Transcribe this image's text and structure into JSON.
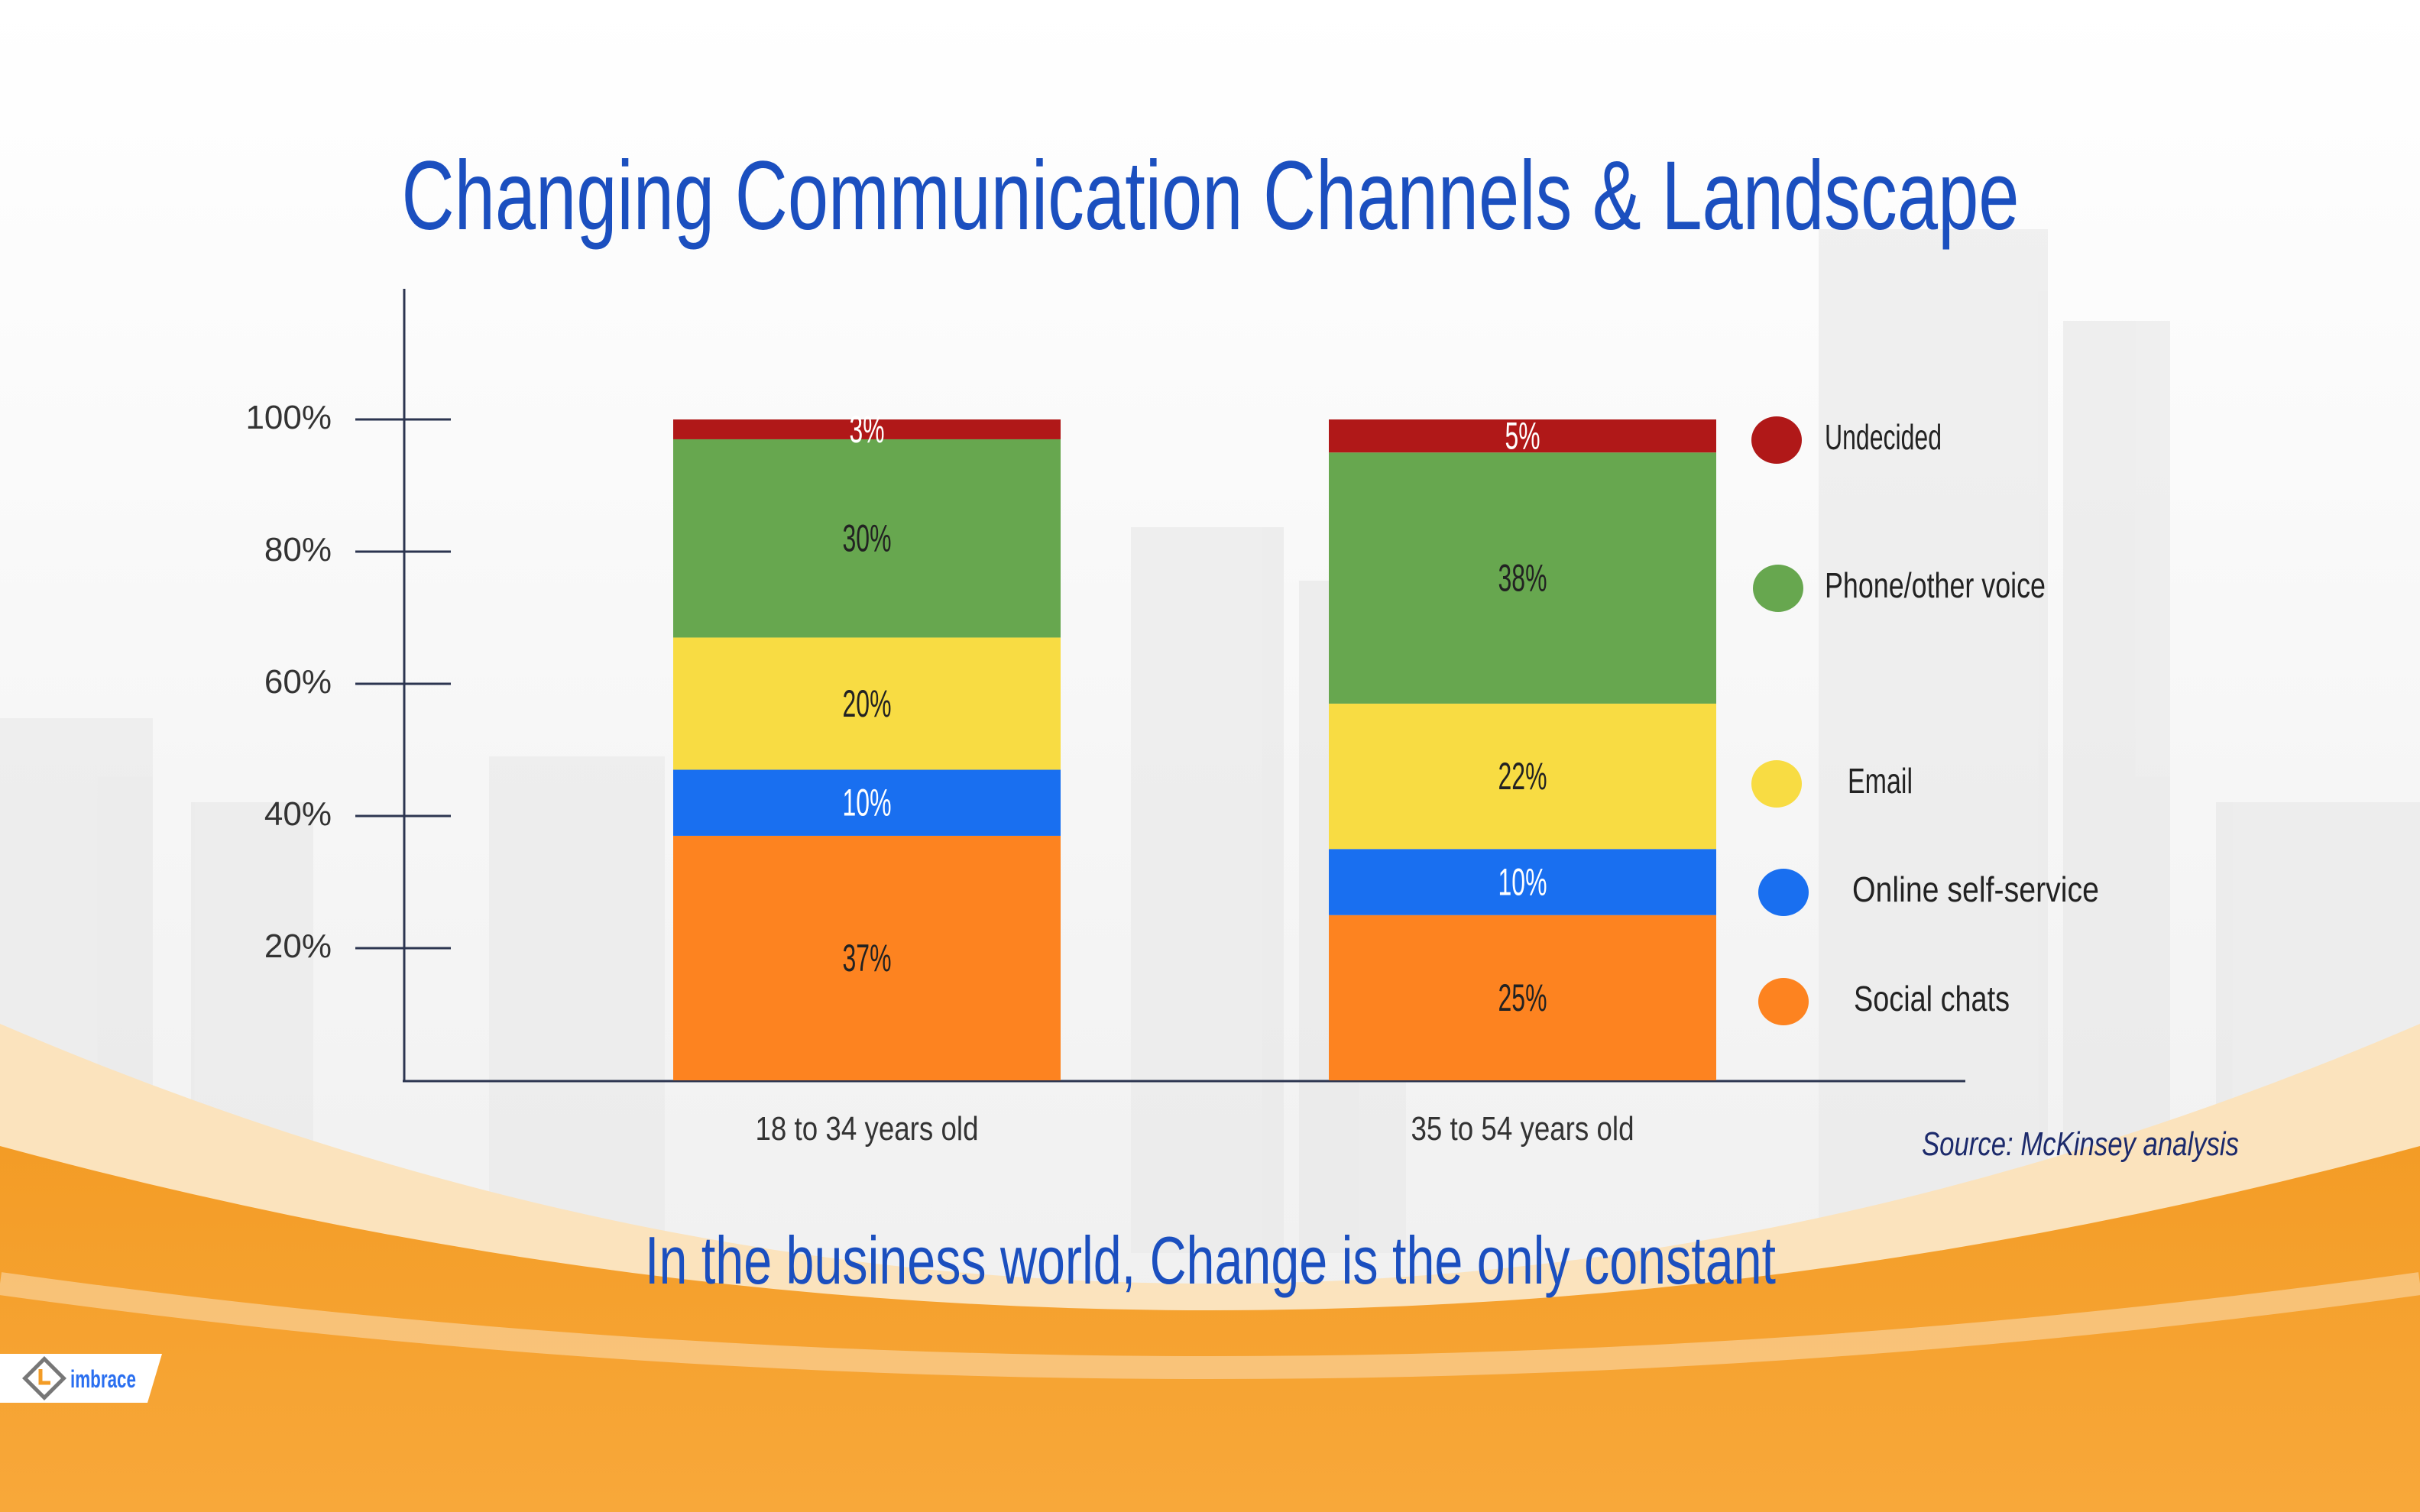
{
  "chart_data": {
    "type": "bar",
    "stacked": true,
    "title": "Changing Communication Channels & Landscape",
    "subtitle": "In the business world, Change is the only constant",
    "source": "Source: McKinsey analysis",
    "categories": [
      "18 to 34 years old",
      "35 to 54 years old"
    ],
    "yticks": [
      "20%",
      "40%",
      "60%",
      "80%",
      "100%"
    ],
    "ytick_values": [
      20,
      40,
      60,
      80,
      100
    ],
    "ylim": [
      0,
      100
    ],
    "legend_position": "right",
    "series": [
      {
        "name": "Social chats",
        "color": "#fd8320",
        "values": [
          37,
          25
        ],
        "labels": [
          "37%",
          "25%"
        ],
        "label_color": "#222222"
      },
      {
        "name": "Online self-service",
        "color": "#196ff0",
        "values": [
          10,
          10
        ],
        "labels": [
          "10%",
          "10%"
        ],
        "label_color": "#ffffff"
      },
      {
        "name": "Email",
        "color": "#f8dc43",
        "values": [
          20,
          22
        ],
        "labels": [
          "20%",
          "22%"
        ],
        "label_color": "#222222"
      },
      {
        "name": "Phone/other voice",
        "color": "#67a74f",
        "values": [
          30,
          38
        ],
        "labels": [
          "30%",
          "38%"
        ],
        "label_color": "#222222"
      },
      {
        "name": "Undecided",
        "color": "#b01818",
        "values": [
          3,
          5
        ],
        "labels": [
          "3%",
          "5%"
        ],
        "label_color": "#ffffff"
      }
    ]
  },
  "legend": [
    "Undecided",
    "Phone/other voice",
    "Email",
    "Online self-service",
    "Social chats"
  ],
  "brand": {
    "logo_text": "imbrace"
  },
  "colors": {
    "title": "#1b4fbf",
    "orange": "#f7a030",
    "source": "#1c2a6b"
  }
}
